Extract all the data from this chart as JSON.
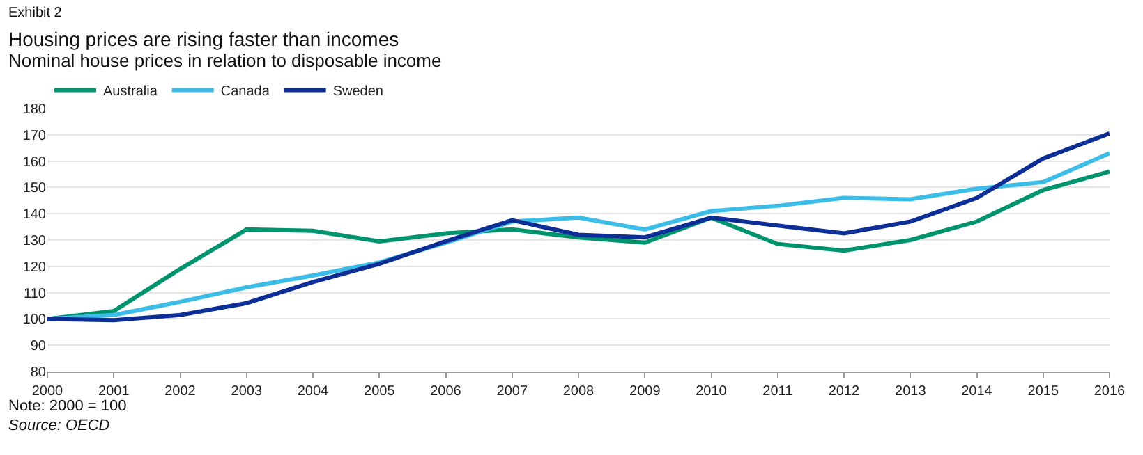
{
  "chart_data": {
    "type": "line",
    "title": "Housing prices are rising faster than incomes",
    "subtitle": "Nominal house prices in relation to disposable income",
    "annotations": [
      "Exhibit 2",
      "Note: 2000 = 100",
      "Source: OECD"
    ],
    "x": [
      2000,
      2001,
      2002,
      2003,
      2004,
      2005,
      2006,
      2007,
      2008,
      2009,
      2010,
      2011,
      2012,
      2013,
      2014,
      2015,
      2016
    ],
    "series": [
      {
        "name": "Australia",
        "color": "#00946e",
        "values": [
          100,
          103,
          119,
          134,
          133.5,
          129.5,
          132.5,
          134,
          131,
          129,
          138.5,
          128.5,
          126,
          130,
          137,
          149,
          156
        ]
      },
      {
        "name": "Canada",
        "color": "#3bbde8",
        "values": [
          100,
          101.5,
          106.5,
          112,
          116.5,
          121.5,
          129,
          137,
          138.5,
          134,
          141,
          143,
          146,
          145.5,
          149.5,
          152,
          163
        ]
      },
      {
        "name": "Sweden",
        "color": "#0d2e96",
        "values": [
          100,
          99.5,
          101.5,
          106,
          114,
          121,
          129.5,
          137.5,
          132,
          131,
          138.5,
          135.5,
          132.5,
          137,
          146,
          161,
          170.5
        ]
      }
    ],
    "xlim": [
      2000,
      2016
    ],
    "xticks": [
      2000,
      2001,
      2002,
      2003,
      2004,
      2005,
      2006,
      2007,
      2008,
      2009,
      2010,
      2011,
      2012,
      2013,
      2014,
      2015,
      2016
    ],
    "ylim": [
      80,
      180
    ],
    "yticks": [
      80,
      90,
      100,
      110,
      120,
      130,
      140,
      150,
      160,
      170,
      180
    ],
    "grid": "y",
    "legend": "top left",
    "line_style": "solid",
    "marker": "none"
  }
}
